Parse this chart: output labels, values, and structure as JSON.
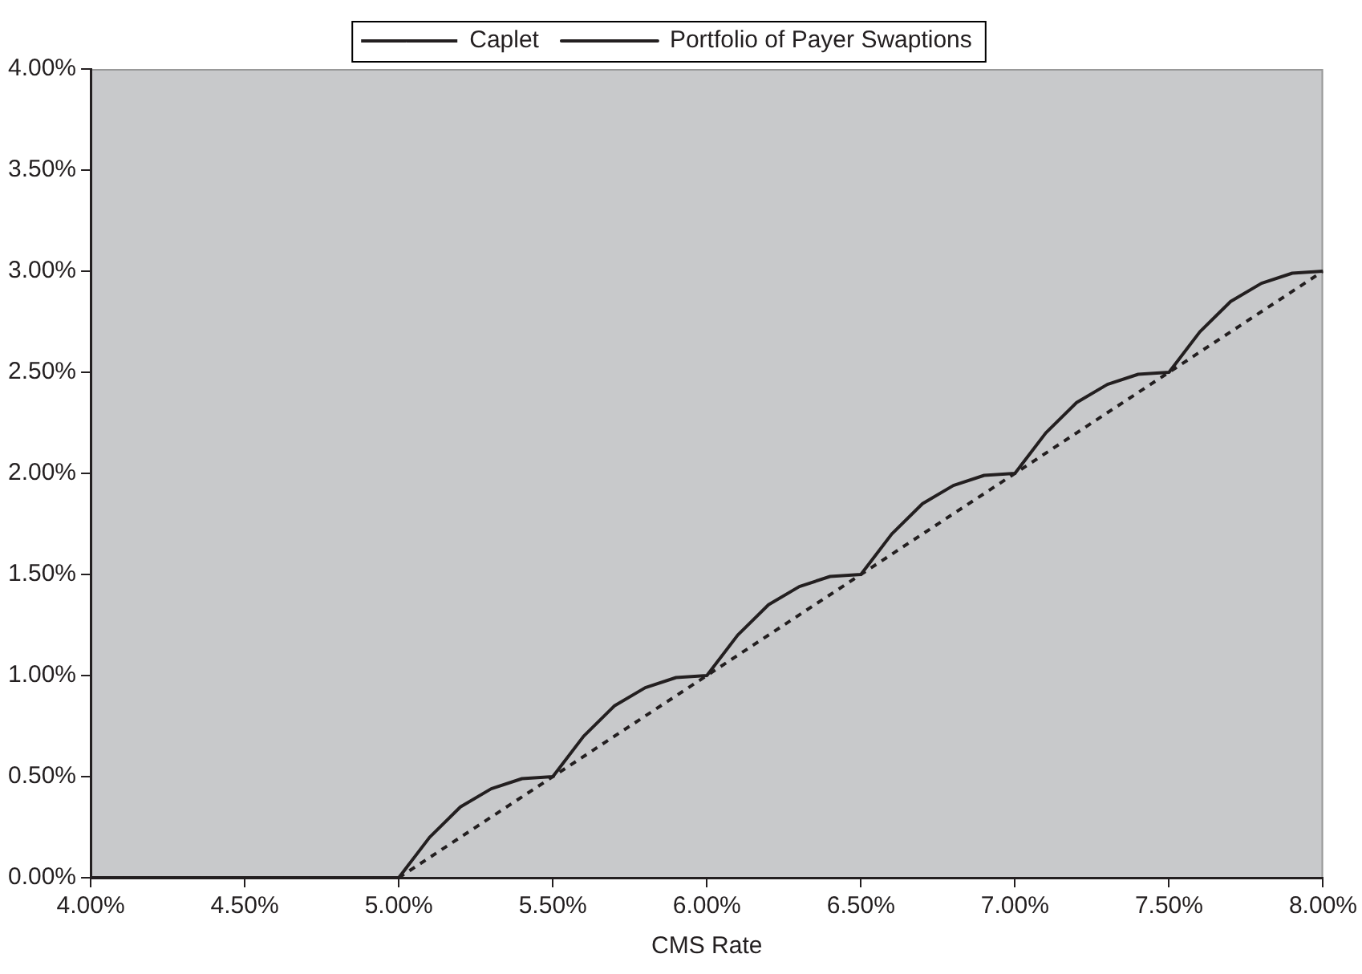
{
  "chart_data": {
    "type": "line",
    "xlabel": "CMS Rate",
    "legend": "top",
    "grid": false,
    "marker": "none",
    "xlim": [
      4,
      8
    ],
    "ylim": [
      0,
      4
    ],
    "xticks": [
      {
        "value": 4,
        "label": "4.00%"
      },
      {
        "value": 4.5,
        "label": "4.50%"
      },
      {
        "value": 5,
        "label": "5.00%"
      },
      {
        "value": 5.5,
        "label": "5.50%"
      },
      {
        "value": 6,
        "label": "6.00%"
      },
      {
        "value": 6.5,
        "label": "6.50%"
      },
      {
        "value": 7,
        "label": "7.00%"
      },
      {
        "value": 7.5,
        "label": "7.50%"
      },
      {
        "value": 8,
        "label": "8.00%"
      }
    ],
    "yticks": [
      {
        "value": 0,
        "label": "0.00%"
      },
      {
        "value": 0.5,
        "label": "0.50%"
      },
      {
        "value": 1,
        "label": "1.00%"
      },
      {
        "value": 1.5,
        "label": "1.50%"
      },
      {
        "value": 2,
        "label": "2.00%"
      },
      {
        "value": 2.5,
        "label": "2.50%"
      },
      {
        "value": 3,
        "label": "3.00%"
      },
      {
        "value": 3.5,
        "label": "3.50%"
      },
      {
        "value": 4,
        "label": "4.00%"
      }
    ],
    "series": [
      {
        "name": "Caplet",
        "color": "#231f20",
        "line_style": "dashed",
        "x": [
          4,
          5,
          8
        ],
        "values": [
          0,
          0,
          3
        ]
      },
      {
        "name": "Portfolio of Payer Swaptions",
        "color": "#231f20",
        "line_style": "solid",
        "x": [
          4,
          4.1,
          4.2,
          4.3,
          4.4,
          4.5,
          4.6,
          4.7,
          4.8,
          4.9,
          5,
          5.1,
          5.2,
          5.3,
          5.4,
          5.5,
          5.6,
          5.7,
          5.8,
          5.9,
          6,
          6.1,
          6.2,
          6.3,
          6.4,
          6.5,
          6.6,
          6.7,
          6.8,
          6.9,
          7,
          7.1,
          7.2,
          7.3,
          7.4,
          7.5,
          7.6,
          7.7,
          7.8,
          7.9,
          8
        ],
        "values": [
          0,
          0,
          0,
          0,
          0,
          0,
          0,
          0,
          0,
          0,
          0,
          0.2,
          0.35,
          0.44,
          0.49,
          0.5,
          0.7,
          0.85,
          0.94,
          0.99,
          1,
          1.2,
          1.35,
          1.44,
          1.49,
          1.5,
          1.7,
          1.85,
          1.94,
          1.99,
          2,
          2.2,
          2.35,
          2.44,
          2.49,
          2.5,
          2.7,
          2.85,
          2.94,
          2.99,
          3
        ]
      }
    ]
  }
}
